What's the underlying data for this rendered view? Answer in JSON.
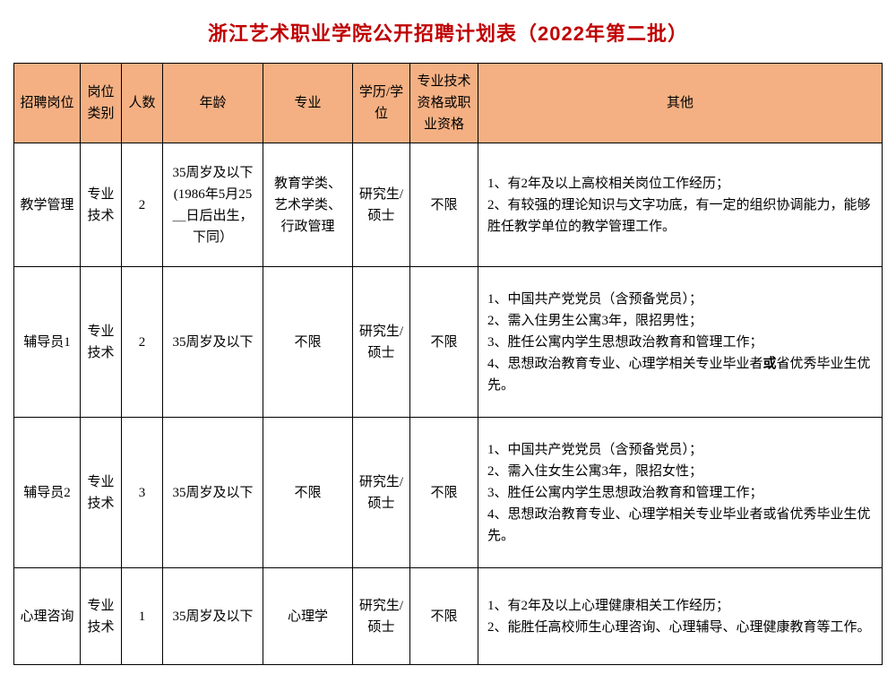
{
  "title": "浙江艺术职业学院公开招聘计划表（2022年第二批）",
  "columns": [
    {
      "key": "position",
      "label": "招聘岗位",
      "class": "col-position"
    },
    {
      "key": "category",
      "label": "岗位类别",
      "class": "col-category"
    },
    {
      "key": "count",
      "label": "人数",
      "class": "col-count"
    },
    {
      "key": "age",
      "label": "年龄",
      "class": "col-age"
    },
    {
      "key": "major",
      "label": "专业",
      "class": "col-major"
    },
    {
      "key": "edu",
      "label": "学历/学位",
      "class": "col-edu"
    },
    {
      "key": "qual",
      "label": "专业技术资格或职业资格",
      "class": "col-qual"
    },
    {
      "key": "other",
      "label": "其他",
      "class": "col-other"
    }
  ],
  "rows": [
    {
      "row_class": "row-tall",
      "position": "教学管理",
      "category": "专业技术",
      "count": "2",
      "age": "35周岁及以下(1986年5月25＿日后出生，下同）",
      "major": "教育学类、艺术学类、行政管理",
      "edu": "研究生/硕士",
      "qual": "不限",
      "other": "1、有2年及以上高校相关岗位工作经历；\n2、有较强的理论知识与文字功底，有一定的组织协调能力，能够胜任教学单位的教学管理工作。"
    },
    {
      "row_class": "row-xtall",
      "position": "辅导员1",
      "category": "专业技术",
      "count": "2",
      "age": "35周岁及以下",
      "major": "不限",
      "edu": "研究生/硕士",
      "qual": "不限",
      "other": "1、中国共产党党员（含预备党员）；\n2、需入住男生公寓3年，限招男性；\n3、胜任公寓内学生思想政治教育和管理工作；\n4、思想政治教育专业、心理学相关专业毕业者或省优秀毕业生优先。",
      "bold_word": "或"
    },
    {
      "row_class": "row-xtall",
      "position": "辅导员2",
      "category": "专业技术",
      "count": "3",
      "age": "35周岁及以下",
      "major": "不限",
      "edu": "研究生/硕士",
      "qual": "不限",
      "other": "1、中国共产党党员（含预备党员）；\n2、需入住女生公寓3年，限招女性；\n3、胜任公寓内学生思想政治教育和管理工作；\n4、思想政治教育专业、心理学相关专业毕业者或省优秀毕业生优先。"
    },
    {
      "row_class": "row-short",
      "position": "心理咨询",
      "category": "专业技术",
      "count": "1",
      "age": "35周岁及以下",
      "major": "心理学",
      "edu": "研究生/硕士",
      "qual": "不限",
      "other": "1、有2年及以上心理健康相关工作经历；\n2、能胜任高校师生心理咨询、心理辅导、心理健康教育等工作。"
    }
  ],
  "colors": {
    "title_color": "#c00000",
    "header_bg": "#f4b083",
    "border_color": "#000000",
    "cell_bg": "#ffffff"
  },
  "typography": {
    "title_fontsize": 22,
    "cell_fontsize": 15,
    "line_height": 1.6
  }
}
